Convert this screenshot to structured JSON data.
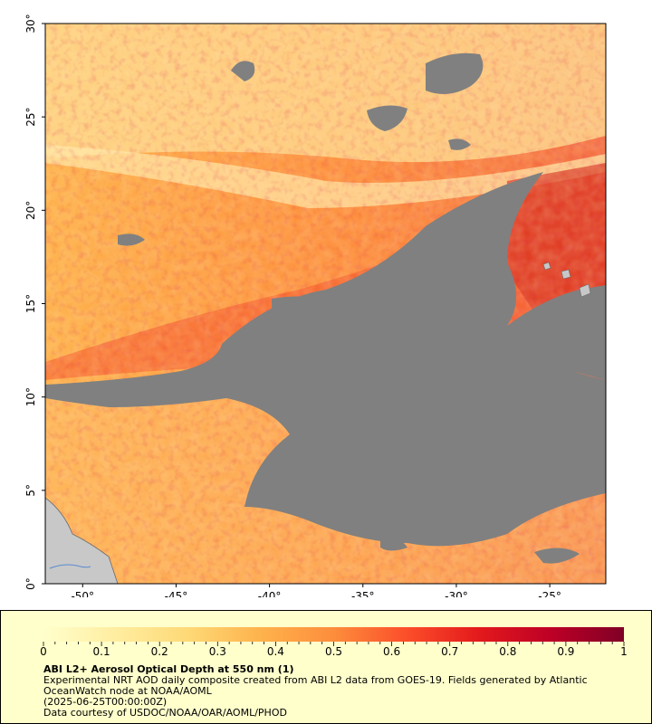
{
  "map": {
    "lat_labels": [
      "0°",
      "5°",
      "10°",
      "15°",
      "20°",
      "25°",
      "30°"
    ],
    "lon_labels": [
      "-50°",
      "-45°",
      "-40°",
      "-35°",
      "-30°",
      "-25°"
    ],
    "extent": {
      "lon_min": -52,
      "lon_max": -22,
      "lat_min": 0,
      "lat_max": 30
    },
    "colors": {
      "no_data": "#808080",
      "land": "#c8c8c8",
      "frame": "#000000"
    }
  },
  "colorbar": {
    "ticks": [
      "0",
      "0.1",
      "0.2",
      "0.3",
      "0.4",
      "0.5",
      "0.6",
      "0.7",
      "0.8",
      "0.9",
      "1"
    ],
    "range": [
      0,
      1
    ],
    "colors": [
      "#ffffcc",
      "#ffeda0",
      "#fed976",
      "#feb24c",
      "#fd8d3c",
      "#fc4e2a",
      "#e31a1c",
      "#bd0026",
      "#800026"
    ]
  },
  "legend": {
    "title": "ABI L2+ Aerosol Optical Depth at 550 nm (1)",
    "line1": "Experimental NRT AOD daily composite created from ABI L2 data from GOES-19. Fields generated by Atlantic",
    "line2": "OceanWatch node at NOAA/AOML",
    "line3": "(2025-06-25T00:00:00Z)",
    "line4": "Data courtesy of USDOC/NOAA/OAR/AOML/PHOD"
  }
}
